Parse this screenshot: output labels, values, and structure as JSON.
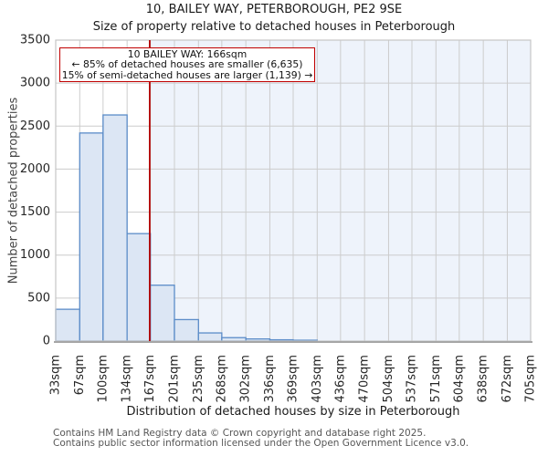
{
  "header": {
    "title": "10, BAILEY WAY, PETERBOROUGH, PE2 9SE",
    "subtitle": "Size of property relative to detached houses in Peterborough"
  },
  "annotation": {
    "line1": "10 BAILEY WAY: 166sqm",
    "line2": "← 85% of detached houses are smaller (6,635)",
    "line3": "15% of semi-detached houses are larger (1,139) →"
  },
  "footer": {
    "line1": "Contains HM Land Registry data © Crown copyright and database right 2025.",
    "line2": "Contains public sector information licensed under the Open Government Licence v3.0."
  },
  "chart_data": {
    "type": "bar",
    "title": "10, BAILEY WAY, PETERBOROUGH, PE2 9SE",
    "subtitle": "Size of property relative to detached houses in Peterborough",
    "xlabel": "Distribution of detached houses by size in Peterborough",
    "ylabel": "Number of detached properties",
    "ylim": [
      0,
      3500
    ],
    "y_ticks": [
      0,
      500,
      1000,
      1500,
      2000,
      2500,
      3000,
      3500
    ],
    "bin_edges_sqm": [
      33,
      67,
      100,
      134,
      167,
      201,
      235,
      268,
      302,
      336,
      369,
      403,
      436,
      470,
      504,
      537,
      571,
      604,
      638,
      672,
      705
    ],
    "x_tick_labels": [
      "33sqm",
      "67sqm",
      "100sqm",
      "134sqm",
      "167sqm",
      "201sqm",
      "235sqm",
      "268sqm",
      "302sqm",
      "336sqm",
      "369sqm",
      "403sqm",
      "436sqm",
      "470sqm",
      "504sqm",
      "537sqm",
      "571sqm",
      "604sqm",
      "638sqm",
      "672sqm",
      "705sqm"
    ],
    "values": [
      370,
      2420,
      2630,
      1250,
      650,
      250,
      95,
      40,
      25,
      15,
      10,
      0,
      0,
      0,
      0,
      0,
      0,
      0,
      0,
      0
    ],
    "marker_sqm": 166,
    "grid": true,
    "legend": "none",
    "colors": {
      "bar_fill": "#dce6f4",
      "bar_edge": "#5b8cc8",
      "marker": "#b40000",
      "annotation_border": "#c00000",
      "shade_right_of_marker": "#eef3fb",
      "grid": "#cccccc",
      "frame": "#c6c6c6",
      "axis": "#a6a6a6"
    }
  }
}
